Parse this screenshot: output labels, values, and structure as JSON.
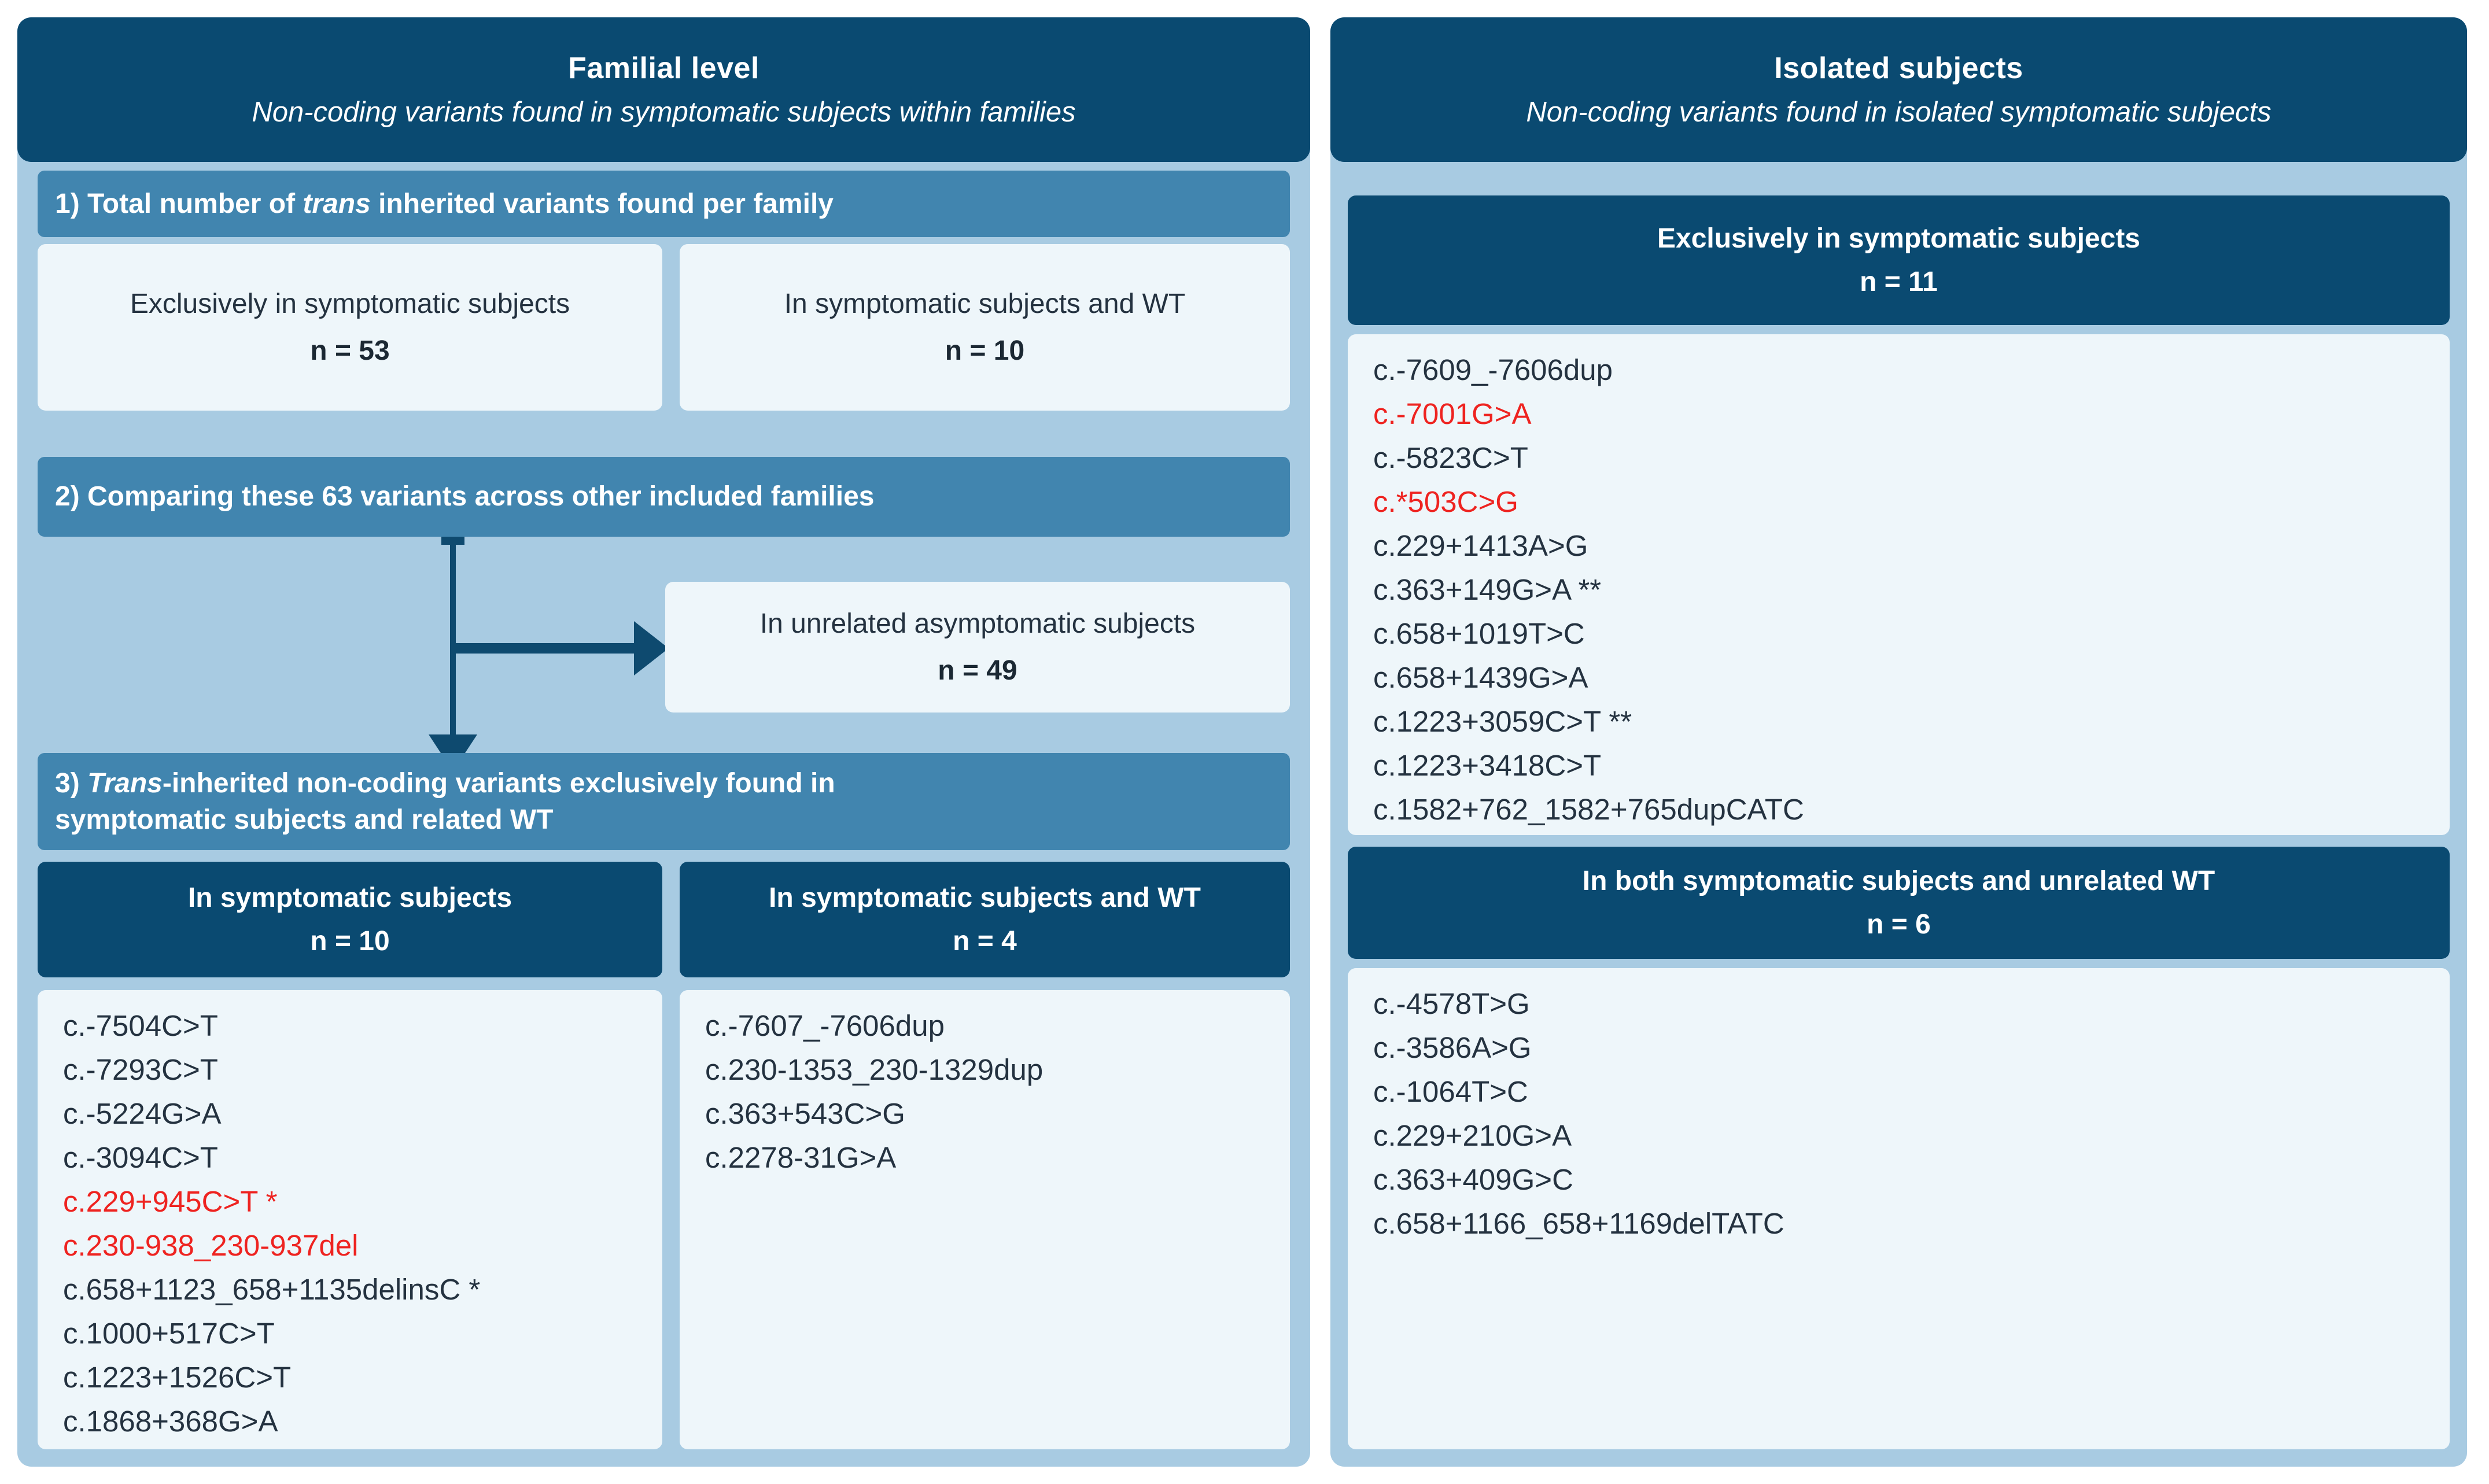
{
  "colors": {
    "panel_bg": "#a8cbe2",
    "navy": "#0a4a71",
    "medium_blue": "#4185af",
    "pale_box": "#eef6fa",
    "text_dark": "#243240",
    "red": "#ee2320",
    "white": "#ffffff"
  },
  "left_panel": {
    "title": "Familial level",
    "subtitle": "Non-coding variants found in symptomatic subjects within families",
    "section1": {
      "prefix": "1) Total number of ",
      "italic": "trans",
      "suffix": " inherited variants found per family"
    },
    "summary_boxes": [
      {
        "line1": "Exclusively in symptomatic subjects",
        "count": "n = 53"
      },
      {
        "line1": "In symptomatic subjects and WT",
        "count": "n = 10"
      }
    ],
    "section2": {
      "text": "2) Comparing these 63 variants across other included families"
    },
    "branch_box": {
      "line1": "In unrelated asymptomatic subjects",
      "count": "n = 49"
    },
    "section3": {
      "prefix": "3) ",
      "italic": "Trans",
      "suffix": "-inherited non-coding variants exclusively found in\nsymptomatic subjects and related WT"
    },
    "columns": [
      {
        "header": "In symptomatic subjects",
        "count": "n = 10",
        "items": [
          {
            "text": "c.-7504C>T"
          },
          {
            "text": "c.-7293C>T"
          },
          {
            "text": "c.-5224G>A"
          },
          {
            "text": "c.-3094C>T"
          },
          {
            "text": "c.229+945C>T *",
            "red": true
          },
          {
            "text": "c.230-938_230-937del",
            "red": true
          },
          {
            "text": "c.658+1123_658+1135delinsC *"
          },
          {
            "text": "c.1000+517C>T"
          },
          {
            "text": "c.1223+1526C>T"
          },
          {
            "text": "c.1868+368G>A"
          }
        ]
      },
      {
        "header": "In symptomatic subjects and WT",
        "count": "n = 4",
        "items": [
          {
            "text": "c.-7607_-7606dup"
          },
          {
            "text": "c.230-1353_230-1329dup"
          },
          {
            "text": "c.363+543C>G"
          },
          {
            "text": "c.2278-31G>A"
          }
        ]
      }
    ]
  },
  "right_panel": {
    "title": "Isolated subjects",
    "subtitle": "Non-coding variants found in isolated symptomatic subjects",
    "sections": [
      {
        "header": "Exclusively in symptomatic subjects",
        "count": "n = 11",
        "items": [
          {
            "text": "c.-7609_-7606dup"
          },
          {
            "text": "c.-7001G>A",
            "red": true
          },
          {
            "text": "c.-5823C>T"
          },
          {
            "text": "c.*503C>G",
            "red": true
          },
          {
            "text": "c.229+1413A>G"
          },
          {
            "text": "c.363+149G>A **"
          },
          {
            "text": "c.658+1019T>C"
          },
          {
            "text": "c.658+1439G>A"
          },
          {
            "text": "c.1223+3059C>T **"
          },
          {
            "text": "c.1223+3418C>T"
          },
          {
            "text": "c.1582+762_1582+765dupCATC"
          }
        ]
      },
      {
        "header": "In both symptomatic subjects and unrelated WT",
        "count": "n = 6",
        "items": [
          {
            "text": "c.-4578T>G"
          },
          {
            "text": "c.-3586A>G"
          },
          {
            "text": "c.-1064T>C"
          },
          {
            "text": "c.229+210G>A"
          },
          {
            "text": "c.363+409G>C"
          },
          {
            "text": "c.658+1166_658+1169delTATC"
          }
        ]
      }
    ]
  }
}
